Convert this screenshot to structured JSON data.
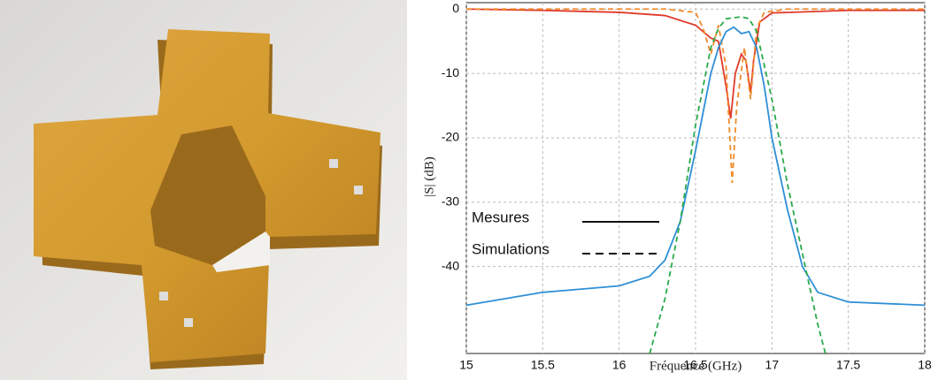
{
  "chart_data": {
    "type": "line",
    "xlabel": "Fréquence  (GHz)",
    "ylabel": "|S| (dB)",
    "xlim": [
      15,
      18
    ],
    "ylim": [
      -53.5,
      1
    ],
    "xticks": [
      15,
      15.5,
      16,
      16.5,
      17,
      17.5,
      18
    ],
    "yticks": [
      0,
      -10,
      -20,
      -30,
      -40
    ],
    "grid": true,
    "legend": [
      {
        "label": "Mesures",
        "dash": "solid"
      },
      {
        "label": "Simulations",
        "dash": "dashed"
      }
    ],
    "series": [
      {
        "color": "#e03a2a",
        "dash": "solid",
        "x": [
          15,
          15.5,
          16,
          16.3,
          16.5,
          16.6,
          16.65,
          16.7,
          16.73,
          16.76,
          16.8,
          16.83,
          16.86,
          16.88,
          16.92,
          17,
          17.5,
          18
        ],
        "values": [
          0,
          -0.2,
          -0.5,
          -1,
          -2.5,
          -4.5,
          -5,
          -12,
          -17,
          -10,
          -7,
          -8,
          -13,
          -8,
          -2,
          -0.6,
          -0.2,
          -0.2
        ]
      },
      {
        "color": "#f08a2a",
        "dash": "dashed",
        "x": [
          15,
          16.3,
          16.5,
          16.55,
          16.6,
          16.65,
          16.7,
          16.74,
          16.77,
          16.82,
          16.86,
          16.9,
          16.95,
          17.1,
          18
        ],
        "values": [
          0,
          0,
          -0.5,
          -3,
          -7,
          -2.5,
          -9,
          -27,
          -15,
          -6,
          -14,
          -3,
          -0.5,
          0,
          0
        ]
      },
      {
        "color": "#2e8fd6",
        "dash": "solid",
        "x": [
          15,
          15.5,
          16,
          16.2,
          16.3,
          16.4,
          16.5,
          16.6,
          16.65,
          16.7,
          16.75,
          16.8,
          16.85,
          16.9,
          16.95,
          17,
          17.1,
          17.2,
          17.3,
          17.5,
          18
        ],
        "values": [
          -46,
          -44,
          -43,
          -41.5,
          -39,
          -33,
          -22,
          -10,
          -6,
          -3.5,
          -2.8,
          -3.8,
          -3.5,
          -6,
          -12,
          -20,
          -31,
          -40,
          -44,
          -45.5,
          -46
        ]
      },
      {
        "color": "#2aaa4a",
        "dash": "dashed",
        "x": [
          16.2,
          16.3,
          16.4,
          16.5,
          16.6,
          16.65,
          16.7,
          16.8,
          16.85,
          16.9,
          17,
          17.1,
          17.2,
          17.3,
          17.35
        ],
        "values": [
          -53.5,
          -45,
          -33,
          -18,
          -6,
          -3,
          -1.5,
          -1.2,
          -1.5,
          -3.5,
          -14,
          -27,
          -38,
          -49,
          -53.5
        ]
      }
    ]
  }
}
